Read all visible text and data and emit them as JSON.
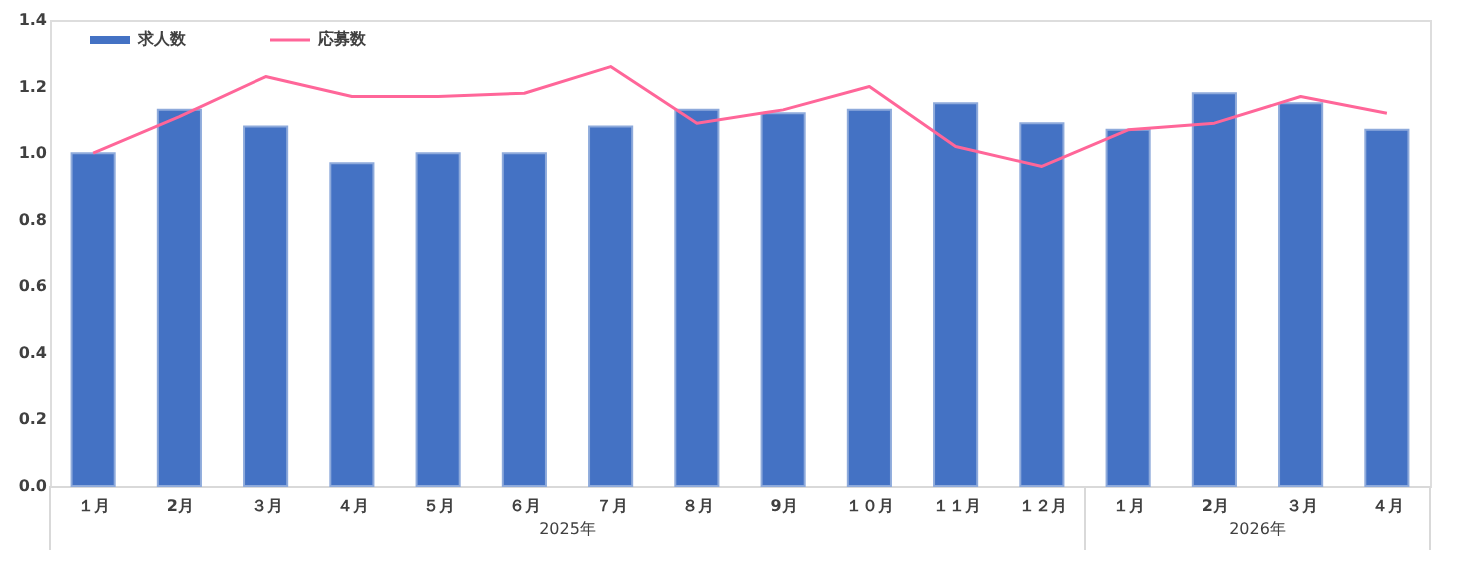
{
  "chart_data": {
    "type": "bar",
    "categories": [
      "１月",
      "2月",
      "３月",
      "４月",
      "５月",
      "６月",
      "７月",
      "８月",
      "9月",
      "１０月",
      "１１月",
      "１２月",
      "１月",
      "2月",
      "３月",
      "４月"
    ],
    "series": [
      {
        "name": "求人数",
        "color": "#4472c4",
        "values": [
          1.0,
          1.13,
          1.08,
          0.97,
          1.0,
          1.0,
          1.08,
          1.13,
          1.12,
          1.13,
          1.15,
          1.09,
          1.07,
          1.18,
          1.15,
          1.07
        ]
      },
      {
        "name": "応募数",
        "type": "line",
        "color": "#ff6699",
        "values": [
          1.0,
          1.11,
          1.23,
          1.17,
          1.17,
          1.18,
          1.26,
          1.09,
          1.13,
          1.2,
          1.02,
          0.96,
          1.07,
          1.09,
          1.17,
          1.12
        ]
      }
    ],
    "annotations": [
      "2025年",
      "2026年"
    ],
    "ylim": [
      0,
      1.4
    ],
    "yticks": [
      {
        "value": 0,
        "label": "0.0"
      },
      0.2,
      0.4,
      0.6,
      0.8,
      {
        "value": 1,
        "label": "1.0"
      },
      1.2,
      1.4
    ],
    "grid": false,
    "legend": "top left"
  }
}
